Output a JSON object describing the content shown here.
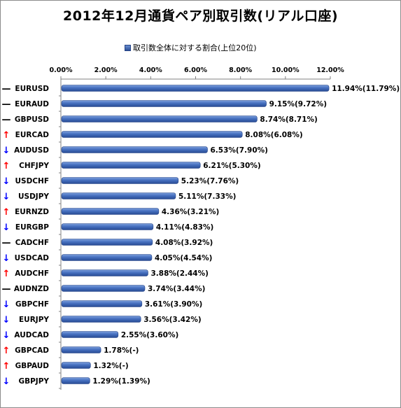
{
  "chart_data": {
    "type": "bar",
    "orientation": "horizontal",
    "title": "2012年12月通貨ペア別取引数(リアル口座)",
    "series": [
      {
        "name": "取引数全体に対する割合(上位20位)",
        "color": "#3b64b5"
      }
    ],
    "x_ticks": [
      "0.00%",
      "2.00%",
      "4.00%",
      "6.00%",
      "8.00%",
      "10.00%",
      "12.00%"
    ],
    "xlim": [
      0,
      12
    ],
    "grid": false,
    "legend_position": "top-center",
    "trend_colors": {
      "up": "#ff0000",
      "down": "#0000ff",
      "flat": "#000000"
    },
    "rows": [
      {
        "category": "EURUSD",
        "value": 11.94,
        "label": "11.94%(11.79%)",
        "trend": "flat",
        "symbol": "—"
      },
      {
        "category": "EURAUD",
        "value": 9.15,
        "label": "9.15%(9.72%)",
        "trend": "flat",
        "symbol": "—"
      },
      {
        "category": "GBPUSD",
        "value": 8.74,
        "label": "8.74%(8.71%)",
        "trend": "flat",
        "symbol": "—"
      },
      {
        "category": "EURCAD",
        "value": 8.08,
        "label": "8.08%(6.08%)",
        "trend": "up",
        "symbol": "↑"
      },
      {
        "category": "AUDUSD",
        "value": 6.53,
        "label": "6.53%(7.90%)",
        "trend": "down",
        "symbol": "↓"
      },
      {
        "category": "CHFJPY",
        "value": 6.21,
        "label": "6.21%(5.30%)",
        "trend": "up",
        "symbol": "↑"
      },
      {
        "category": "USDCHF",
        "value": 5.23,
        "label": "5.23%(7.76%)",
        "trend": "down",
        "symbol": "↓"
      },
      {
        "category": "USDJPY",
        "value": 5.11,
        "label": "5.11%(7.33%)",
        "trend": "down",
        "symbol": "↓"
      },
      {
        "category": "EURNZD",
        "value": 4.36,
        "label": "4.36%(3.21%)",
        "trend": "up",
        "symbol": "↑"
      },
      {
        "category": "EURGBP",
        "value": 4.11,
        "label": "4.11%(4.83%)",
        "trend": "down",
        "symbol": "↓"
      },
      {
        "category": "CADCHF",
        "value": 4.08,
        "label": "4.08%(3.92%)",
        "trend": "flat",
        "symbol": "—"
      },
      {
        "category": "USDCAD",
        "value": 4.05,
        "label": "4.05%(4.54%)",
        "trend": "down",
        "symbol": "↓"
      },
      {
        "category": "AUDCHF",
        "value": 3.88,
        "label": "3.88%(2.44%)",
        "trend": "up",
        "symbol": "↑"
      },
      {
        "category": "AUDNZD",
        "value": 3.74,
        "label": "3.74%(3.44%)",
        "trend": "flat",
        "symbol": "—"
      },
      {
        "category": "GBPCHF",
        "value": 3.61,
        "label": "3.61%(3.90%)",
        "trend": "down",
        "symbol": "↓"
      },
      {
        "category": "EURJPY",
        "value": 3.56,
        "label": "3.56%(3.42%)",
        "trend": "down",
        "symbol": "↓"
      },
      {
        "category": "AUDCAD",
        "value": 2.55,
        "label": "2.55%(3.60%)",
        "trend": "down",
        "symbol": "↓"
      },
      {
        "category": "GBPCAD",
        "value": 1.78,
        "label": "1.78%(-)",
        "trend": "up",
        "symbol": "↑"
      },
      {
        "category": "GBPAUD",
        "value": 1.32,
        "label": "1.32%(-)",
        "trend": "up",
        "symbol": "↑"
      },
      {
        "category": "GBPJPY",
        "value": 1.29,
        "label": "1.29%(1.39%)",
        "trend": "down",
        "symbol": "↓"
      }
    ]
  }
}
